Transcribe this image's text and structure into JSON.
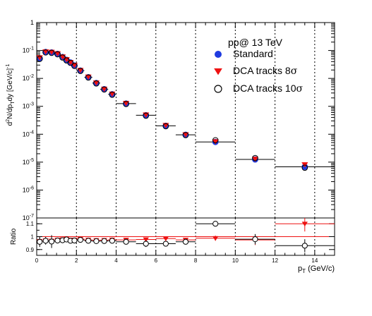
{
  "chart_data": [
    {
      "type": "scatter",
      "panel": "spectrum",
      "title": "",
      "annotation": "pp@ 13 TeV",
      "xlabel": "",
      "ylabel": "d²N/dp_T dy [GeV/c]⁻¹",
      "ylabel_parts": {
        "main": "d²N/dp",
        "sub1": "T",
        "mid": "dy [GeV/c]",
        "sup": "-1"
      },
      "xlim": [
        0,
        15
      ],
      "ylim": [
        1e-07,
        1
      ],
      "yscale": "log",
      "yticks": [
        "10⁻⁷",
        "10⁻⁶",
        "10⁻⁵",
        "10⁻⁴",
        "10⁻³",
        "10⁻²",
        "10⁻¹",
        "1"
      ],
      "ytick_parts": [
        {
          "base": "10",
          "exp": "-7",
          "value": 1e-07
        },
        {
          "base": "10",
          "exp": "-6",
          "value": 1e-06
        },
        {
          "base": "10",
          "exp": "-5",
          "value": 1e-05
        },
        {
          "base": "10",
          "exp": "-4",
          "value": 0.0001
        },
        {
          "base": "10",
          "exp": "-3",
          "value": 0.001
        },
        {
          "base": "10",
          "exp": "-2",
          "value": 0.01
        },
        {
          "base": "10",
          "exp": "-1",
          "value": 0.1
        },
        {
          "base": "1",
          "exp": "",
          "value": 1
        }
      ],
      "grid": "vertical dashed at x = 2, 4, 6, 8, 10, 12, 14",
      "legend_position": "top-right",
      "bins": [
        [
          0.0,
          0.3
        ],
        [
          0.3,
          0.6
        ],
        [
          0.6,
          0.9
        ],
        [
          0.9,
          1.2
        ],
        [
          1.2,
          1.4
        ],
        [
          1.4,
          1.6
        ],
        [
          1.6,
          1.8
        ],
        [
          1.8,
          2.0
        ],
        [
          2.0,
          2.4
        ],
        [
          2.4,
          2.8
        ],
        [
          2.8,
          3.2
        ],
        [
          3.2,
          3.6
        ],
        [
          3.6,
          4.0
        ],
        [
          4.0,
          5.0
        ],
        [
          5.0,
          6.0
        ],
        [
          6.0,
          7.0
        ],
        [
          7.0,
          8.0
        ],
        [
          8.0,
          10.0
        ],
        [
          10.0,
          12.0
        ],
        [
          12.0,
          15.0
        ]
      ],
      "x": [
        0.15,
        0.45,
        0.75,
        1.05,
        1.3,
        1.5,
        1.7,
        1.9,
        2.2,
        2.6,
        3.0,
        3.4,
        3.8,
        4.5,
        5.5,
        6.5,
        7.5,
        9.0,
        11.0,
        13.5
      ],
      "series": [
        {
          "name": "Standard",
          "marker": "filled-circle",
          "color": "#1f3be0",
          "values": [
            0.052,
            0.088,
            0.085,
            0.075,
            0.058,
            0.046,
            0.037,
            0.029,
            0.019,
            0.011,
            0.0068,
            0.0041,
            0.0027,
            0.00125,
            0.00048,
            0.0002,
            9.5e-05,
            5.3e-05,
            1.25e-05,
            6.8e-06
          ]
        },
        {
          "name": "DCA tracks 8σ",
          "name_parts": {
            "text": "DCA tracks 8",
            "sym": "σ"
          },
          "marker": "filled-triangle-down",
          "color": "#ee1111",
          "values": [
            0.056,
            0.091,
            0.088,
            0.078,
            0.06,
            0.048,
            0.038,
            0.03,
            0.0197,
            0.0114,
            0.007,
            0.0042,
            0.0028,
            0.0013,
            0.0005,
            0.00021,
            9.8e-05,
            5.5e-05,
            1.3e-05,
            8.2e-06
          ]
        },
        {
          "name": "DCA tracks 10σ",
          "name_parts": {
            "text": "DCA tracks 10",
            "sym": "σ"
          },
          "marker": "open-circle",
          "color": "#000000",
          "values": [
            0.05,
            0.085,
            0.082,
            0.073,
            0.056,
            0.044,
            0.036,
            0.028,
            0.0185,
            0.0107,
            0.0066,
            0.004,
            0.0026,
            0.00121,
            0.00046,
            0.000194,
            9.3e-05,
            6.1e-05,
            1.4e-05,
            6.3e-06
          ]
        }
      ]
    },
    {
      "type": "scatter",
      "panel": "ratio",
      "xlabel": "p_T (GeV/c)",
      "xlabel_parts": {
        "main": "p",
        "sub": "T",
        "rest": " (GeV/c)"
      },
      "ylabel": "Ratio",
      "xlim": [
        0,
        15
      ],
      "ylim": [
        0.855,
        1.145
      ],
      "xticks": [
        "0",
        "2",
        "4",
        "6",
        "8",
        "10",
        "12",
        "14"
      ],
      "xtick_values": [
        0,
        2,
        4,
        6,
        8,
        10,
        12,
        14
      ],
      "yticks": [
        "0.9",
        "1",
        "1.1"
      ],
      "ytick_values": [
        0.9,
        1.0,
        1.1
      ],
      "reference_line": 1.0,
      "x": [
        0.15,
        0.45,
        0.75,
        1.05,
        1.3,
        1.5,
        1.7,
        1.9,
        2.2,
        2.6,
        3.0,
        3.4,
        3.8,
        4.5,
        5.5,
        6.5,
        7.5,
        9.0,
        11.0,
        13.5
      ],
      "series": [
        {
          "name": "DCA tracks 8σ",
          "marker": "filled-triangle-down",
          "color": "#ee1111",
          "values": [
            0.965,
            0.97,
            0.968,
            0.975,
            0.978,
            0.985,
            0.975,
            0.975,
            0.982,
            0.975,
            0.972,
            0.973,
            0.976,
            0.975,
            0.978,
            0.985,
            0.975,
            0.988,
            0.975,
            1.1
          ],
          "errors": [
            0.03,
            0.02,
            0.015,
            0.01,
            0.01,
            0.01,
            0.01,
            0.008,
            0.008,
            0.008,
            0.008,
            0.008,
            0.008,
            0.008,
            0.01,
            0.01,
            0.012,
            0.02,
            0.04,
            0.06
          ]
        },
        {
          "name": "DCA tracks 10σ",
          "marker": "open-circle",
          "color": "#000000",
          "values": [
            0.96,
            0.968,
            0.962,
            0.97,
            0.972,
            0.978,
            0.968,
            0.97,
            0.975,
            0.968,
            0.965,
            0.966,
            0.968,
            0.96,
            0.945,
            0.945,
            0.96,
            1.1,
            0.98,
            0.93
          ],
          "errors": [
            0.04,
            0.03,
            0.05,
            0.012,
            0.012,
            0.01,
            0.01,
            0.008,
            0.008,
            0.008,
            0.008,
            0.008,
            0.008,
            0.01,
            0.025,
            0.015,
            0.015,
            0.02,
            0.04,
            0.05
          ]
        }
      ]
    }
  ]
}
